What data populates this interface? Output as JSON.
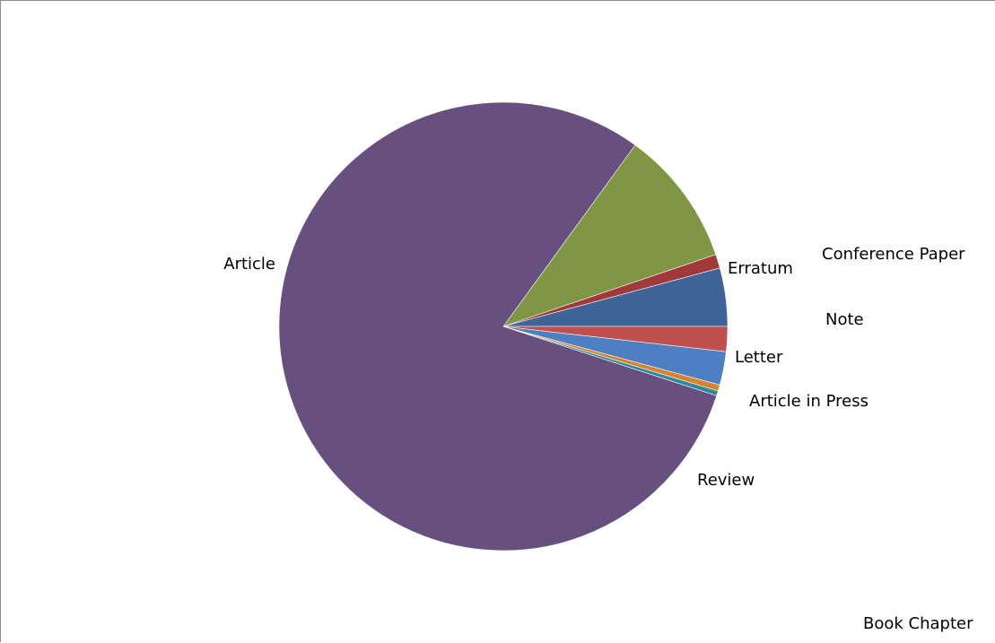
{
  "chart_data": {
    "type": "pie",
    "title": "",
    "start": "right-horizontal, counterclockwise",
    "slices": [
      {
        "label": "Letter",
        "value": 4.2,
        "color": "#3f6498"
      },
      {
        "label": "Article in Press",
        "value": 1.0,
        "color": "#a0393a"
      },
      {
        "label": "Review",
        "value": 9.8,
        "color": "#7f9644"
      },
      {
        "label": "Article",
        "value": 80.0,
        "color": "#674f80"
      },
      {
        "label": "Conference Paper",
        "value": 0.35,
        "color": "#2b8a9b"
      },
      {
        "label": "Erratum",
        "value": 0.45,
        "color": "#d8832e"
      },
      {
        "label": "Note",
        "value": 2.4,
        "color": "#4e7fc2"
      },
      {
        "label": "Book Chapter",
        "value": 1.8,
        "color": "#c0504d"
      }
    ]
  }
}
